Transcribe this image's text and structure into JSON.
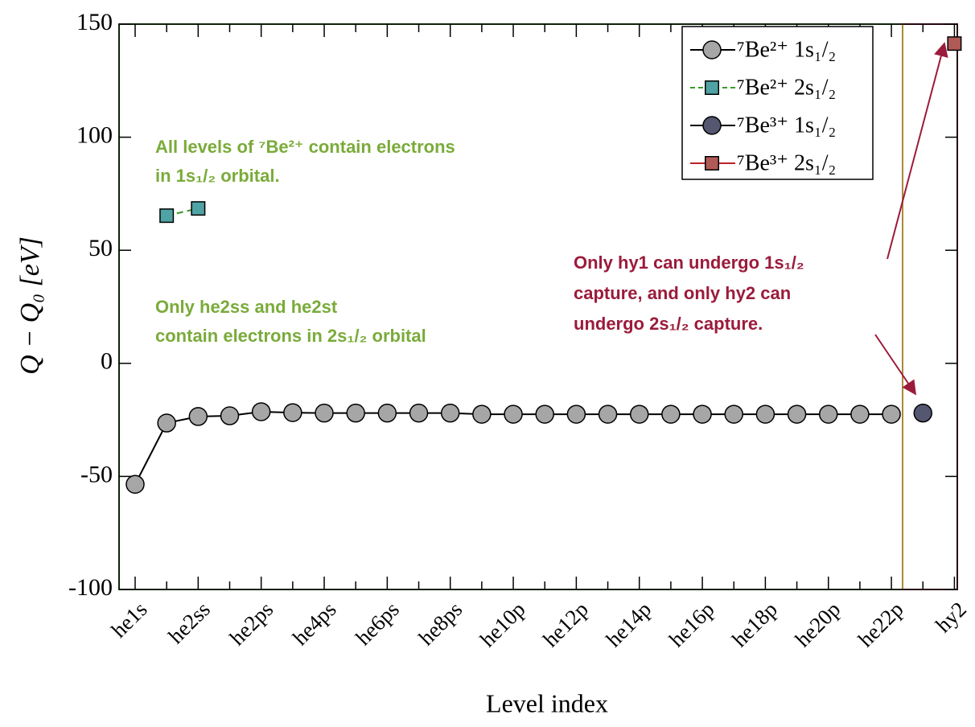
{
  "chart_data": {
    "type": "line",
    "xlabel": "Level index",
    "ylabel": "Q − Q₀ [eV]",
    "categories": [
      "he1s",
      null,
      "he2ss",
      null,
      "he2ps",
      null,
      "he4ps",
      null,
      "he6ps",
      null,
      "he8ps",
      null,
      "he10p",
      null,
      "he12p",
      null,
      "he14p",
      null,
      "he16p",
      null,
      "he18p",
      null,
      "he20p",
      null,
      "he22p",
      null,
      "hy2"
    ],
    "series": [
      {
        "name": "⁷Be²⁺ 1s₁/₂",
        "color": "#a6a6a6",
        "line_color": "#000000",
        "marker": "circle",
        "dashed": false,
        "values": [
          -53.5,
          -26.4,
          -23.5,
          -23.2,
          -21.4,
          -21.8,
          -22,
          -22,
          -22,
          -22,
          -22,
          -22.5,
          -22.5,
          -22.5,
          -22.5,
          -22.5,
          -22.5,
          -22.5,
          -22.5,
          -22.5,
          -22.5,
          -22.5,
          -22.5,
          -22.5,
          -22.5,
          null,
          null
        ]
      },
      {
        "name": "⁷Be²⁺ 2s₁/₂",
        "color": "#4fa3a5",
        "line_color": "#3a9a2a",
        "marker": "square",
        "dashed": true,
        "values": [
          null,
          65.3,
          68.5,
          null,
          null,
          null,
          null,
          null,
          null,
          null,
          null,
          null,
          null,
          null,
          null,
          null,
          null,
          null,
          null,
          null,
          null,
          null,
          null,
          null,
          null,
          null,
          null
        ]
      },
      {
        "name": "⁷Be³⁺ 1s₁/₂",
        "color": "#55566f",
        "line_color": "#000000",
        "marker": "circle",
        "dashed": false,
        "values": [
          null,
          null,
          null,
          null,
          null,
          null,
          null,
          null,
          null,
          null,
          null,
          null,
          null,
          null,
          null,
          null,
          null,
          null,
          null,
          null,
          null,
          null,
          null,
          null,
          null,
          -22,
          null
        ]
      },
      {
        "name": "⁷Be³⁺ 2s₁/₂",
        "color": "#b05a58",
        "line_color": "#c0202a",
        "marker": "square",
        "dashed": false,
        "values": [
          null,
          null,
          null,
          null,
          null,
          null,
          null,
          null,
          null,
          null,
          null,
          null,
          null,
          null,
          null,
          null,
          null,
          null,
          null,
          null,
          null,
          null,
          null,
          null,
          null,
          null,
          141.4
        ]
      }
    ],
    "ylim": [
      -100,
      150
    ],
    "yticks": [
      -100,
      -50,
      0,
      50,
      100,
      150
    ],
    "grid": false,
    "legend": "upper right",
    "annotations": [
      {
        "lines": [
          "All levels of ⁷Be²⁺ contain electrons",
          "in 1s₁/₂ orbital."
        ],
        "color": "#7aab3a"
      },
      {
        "lines": [
          "Only he2ss and he2st",
          "contain electrons in 2s₁/₂ orbital"
        ],
        "color": "#7aab3a"
      },
      {
        "lines": [
          "Only hy1 can undergo 1s₁/₂",
          "capture, and only hy2 can",
          "undergo 2s₁/₂ capture."
        ],
        "color": "#9b1b3b"
      }
    ]
  }
}
